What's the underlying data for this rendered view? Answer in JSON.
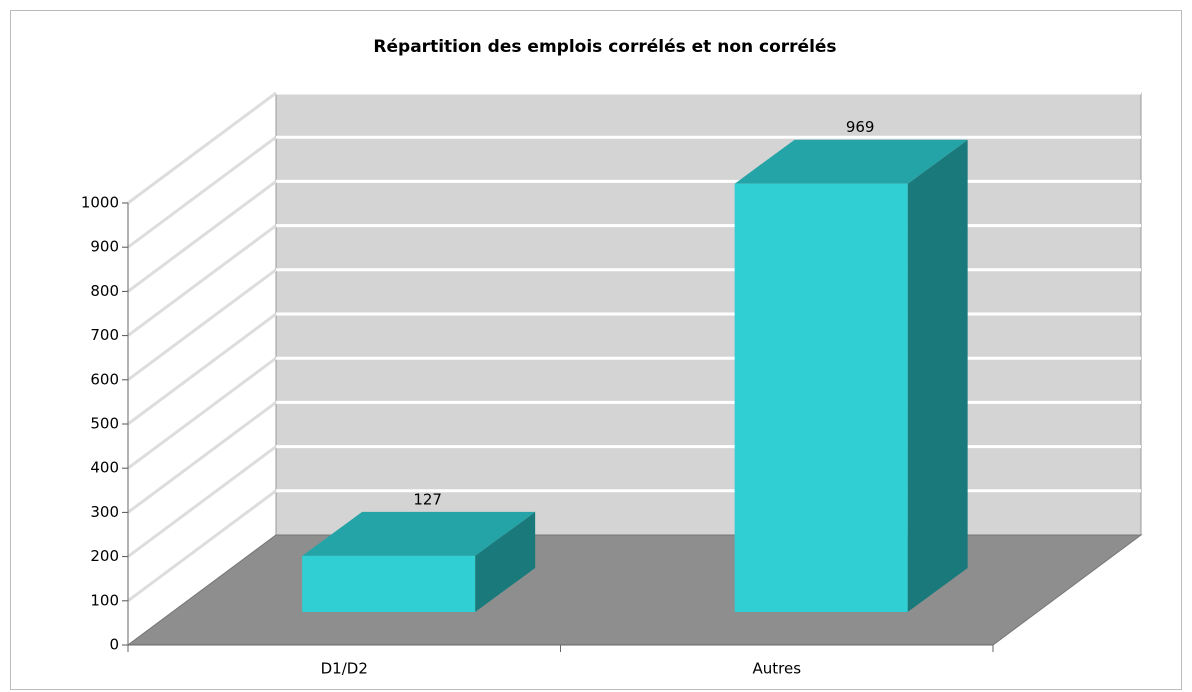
{
  "chart_data": {
    "type": "bar",
    "title": "Répartition des emplois corrélés et non corrélés",
    "categories": [
      "D1/D2",
      "Autres"
    ],
    "values": [
      127,
      969
    ],
    "color": "#30cfd3",
    "ylim": [
      0,
      1000
    ],
    "yticks": [
      0,
      100,
      200,
      300,
      400,
      500,
      600,
      700,
      800,
      900,
      1000
    ],
    "grid": true
  }
}
